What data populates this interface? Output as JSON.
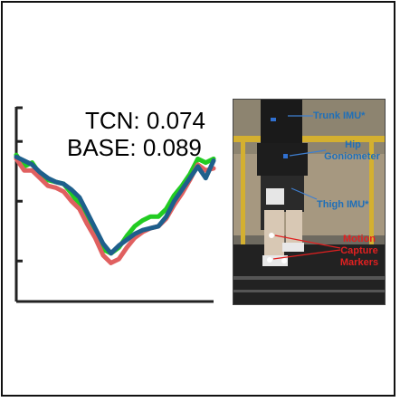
{
  "chart_data": {
    "type": "line",
    "title": "",
    "xlabel": "",
    "ylabel": "",
    "x": [
      0,
      4,
      8,
      12,
      16,
      20,
      24,
      28,
      32,
      36,
      40,
      44,
      48,
      52,
      56,
      60,
      64,
      68,
      72,
      76,
      80,
      84,
      88,
      92,
      96,
      100
    ],
    "xlim": [
      0,
      100
    ],
    "ylim": [
      0,
      100
    ],
    "y_ticks": [
      21,
      52,
      83
    ],
    "series": [
      {
        "color": "#22cc22",
        "values": [
          76,
          70,
          72,
          66,
          63,
          62,
          61,
          56,
          50,
          42,
          35,
          27,
          25,
          28,
          34,
          39,
          42,
          44,
          44,
          48,
          55,
          60,
          66,
          74,
          72,
          74
        ]
      },
      {
        "color": "#e06060",
        "values": [
          74,
          68,
          68,
          64,
          60,
          59,
          57,
          52,
          48,
          40,
          33,
          24,
          20,
          22,
          28,
          33,
          36,
          38,
          39,
          43,
          50,
          56,
          63,
          71,
          68,
          69
        ]
      },
      {
        "color": "#1e5f8c",
        "values": [
          75,
          73,
          71,
          67,
          64,
          62,
          61,
          58,
          54,
          46,
          38,
          30,
          25,
          29,
          32,
          35,
          37,
          38,
          39,
          44,
          52,
          58,
          64,
          70,
          64,
          73
        ]
      }
    ],
    "annotations": [
      {
        "label": "TCN",
        "value": "0.074"
      },
      {
        "label": "BASE",
        "value": "0.089"
      }
    ]
  },
  "metrics": {
    "tcn": "TCN: 0.074",
    "base": "BASE: 0.089"
  },
  "photo": {
    "labels": {
      "trunk_imu": "Trunk IMU*",
      "hip_1": "Hip",
      "hip_2": "Goniometer",
      "thigh_imu": "Thigh IMU*",
      "mocap_1": "Motion",
      "mocap_2": "Capture",
      "mocap_3": "Markers"
    },
    "colors": {
      "imu_label": "#1f6fb8",
      "marker_label": "#e02020"
    }
  }
}
